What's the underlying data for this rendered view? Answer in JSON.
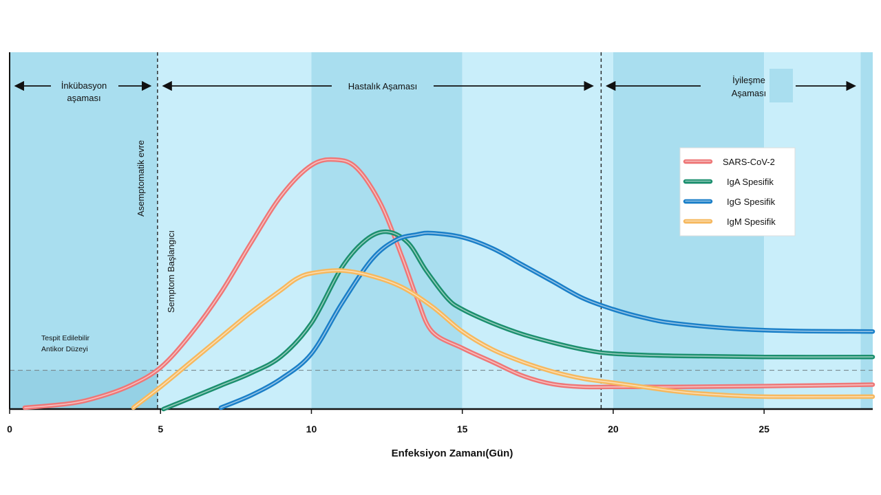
{
  "chart_data": {
    "type": "line",
    "xlabel": "Enfeksiyon Zamanı(Gün)",
    "ylabel": "",
    "xlim": [
      0,
      28.6
    ],
    "ylim": [
      0,
      100
    ],
    "x_ticks": [
      0,
      5,
      10,
      15,
      20,
      25
    ],
    "legend_position": "top-right",
    "grid": false,
    "background_bands": [
      {
        "from": 0,
        "to": 4.9,
        "color": "#a9deef"
      },
      {
        "from": 4.9,
        "to": 10.0,
        "color": "#c9eefa"
      },
      {
        "from": 10.0,
        "to": 15.0,
        "color": "#a9deef"
      },
      {
        "from": 15.0,
        "to": 20.0,
        "color": "#c9eefa"
      },
      {
        "from": 20.0,
        "to": 25.0,
        "color": "#a9deef"
      },
      {
        "from": 25.0,
        "to": 28.2,
        "color": "#c9eefa"
      },
      {
        "from": 28.2,
        "to": 28.6,
        "color": "#a9deef"
      }
    ],
    "phases": [
      {
        "label_lines": [
          "İnkübasyon",
          "aşaması"
        ],
        "from": 0,
        "to": 4.9
      },
      {
        "label_lines": [
          "Hastalık Aşaması"
        ],
        "from": 4.9,
        "to": 19.6
      },
      {
        "label_lines": [
          "İyileşme",
          "Aşaması"
        ],
        "from": 19.6,
        "to": 28.2
      }
    ],
    "vertical_markers": [
      {
        "x": 4.9,
        "label": "Asemptomatik  evre",
        "label2": "Semptom  Başlangıcı"
      },
      {
        "x": 19.6,
        "label": ""
      }
    ],
    "threshold": {
      "y": 14,
      "label_lines": [
        "Tespit Edilebilir",
        "Antikor Düzeyi"
      ]
    },
    "series": [
      {
        "name": "SARS-CoV-2",
        "color": "#ee7777",
        "points": [
          [
            0.5,
            0.5
          ],
          [
            2,
            2
          ],
          [
            3,
            4.5
          ],
          [
            4,
            8.5
          ],
          [
            5,
            15
          ],
          [
            6,
            27
          ],
          [
            7,
            42
          ],
          [
            8,
            60
          ],
          [
            9,
            77
          ],
          [
            10,
            88
          ],
          [
            10.8,
            90
          ],
          [
            11.5,
            87
          ],
          [
            12.3,
            74
          ],
          [
            13,
            55
          ],
          [
            13.5,
            40
          ],
          [
            14,
            28
          ],
          [
            15,
            22
          ],
          [
            16,
            17
          ],
          [
            17,
            12
          ],
          [
            18,
            9
          ],
          [
            19,
            8
          ],
          [
            20,
            8
          ],
          [
            22,
            8
          ],
          [
            25,
            8.3
          ],
          [
            28.6,
            8.8
          ]
        ]
      },
      {
        "name": "IgA Spesifik",
        "color": "#1b8f6e",
        "points": [
          [
            5.1,
            0
          ],
          [
            6,
            4
          ],
          [
            7,
            8.5
          ],
          [
            8,
            13
          ],
          [
            9,
            19
          ],
          [
            10,
            31
          ],
          [
            11,
            51
          ],
          [
            11.8,
            61
          ],
          [
            12.5,
            64
          ],
          [
            13.2,
            60
          ],
          [
            13.8,
            50
          ],
          [
            14.5,
            40
          ],
          [
            15,
            36
          ],
          [
            16,
            31
          ],
          [
            17,
            27
          ],
          [
            18,
            24
          ],
          [
            19,
            21.5
          ],
          [
            20,
            20
          ],
          [
            22,
            19.2
          ],
          [
            25,
            18.8
          ],
          [
            28.6,
            18.8
          ]
        ]
      },
      {
        "name": "IgG Spesifik",
        "color": "#1a7fc8",
        "points": [
          [
            7,
            0.5
          ],
          [
            8,
            5
          ],
          [
            9,
            11
          ],
          [
            10,
            20
          ],
          [
            11,
            38
          ],
          [
            12,
            54
          ],
          [
            12.8,
            61
          ],
          [
            13.5,
            63
          ],
          [
            14,
            63.5
          ],
          [
            15,
            62
          ],
          [
            16,
            58
          ],
          [
            17,
            52
          ],
          [
            18,
            46
          ],
          [
            19,
            40
          ],
          [
            20,
            36
          ],
          [
            21,
            33
          ],
          [
            22,
            31
          ],
          [
            24,
            29
          ],
          [
            26,
            28.2
          ],
          [
            28.6,
            28
          ]
        ]
      },
      {
        "name": "IgM Spesifik",
        "color": "#f6b85e",
        "points": [
          [
            4.1,
            0.5
          ],
          [
            5,
            8
          ],
          [
            6,
            17
          ],
          [
            7,
            26
          ],
          [
            8,
            35
          ],
          [
            9,
            43
          ],
          [
            9.5,
            47
          ],
          [
            10,
            49
          ],
          [
            11,
            50
          ],
          [
            12,
            48
          ],
          [
            13,
            44
          ],
          [
            14,
            37
          ],
          [
            15,
            28
          ],
          [
            16,
            21.5
          ],
          [
            17,
            17
          ],
          [
            18,
            13.5
          ],
          [
            19,
            11
          ],
          [
            20,
            9.5
          ],
          [
            21,
            8
          ],
          [
            22,
            6.5
          ],
          [
            23,
            5.5
          ],
          [
            25,
            4.5
          ],
          [
            28.6,
            4.5
          ]
        ]
      }
    ]
  }
}
